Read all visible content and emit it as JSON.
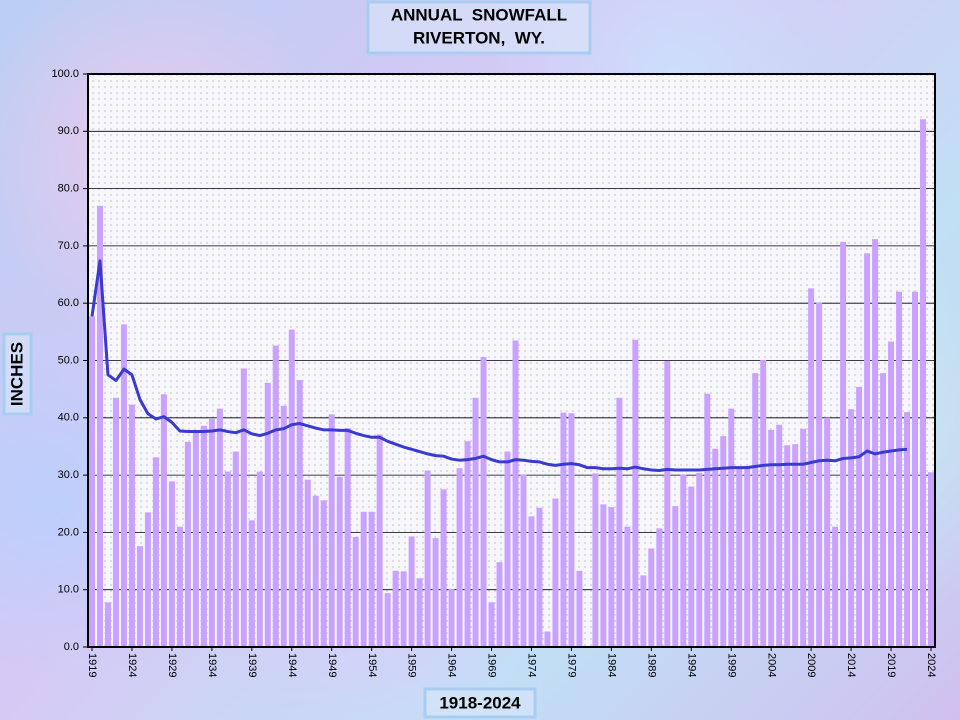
{
  "chart_data": {
    "type": "bar",
    "title": "ANNUAL  SNOWFALL",
    "subtitle": "RIVERTON,  WY.",
    "ylabel": "INCHES",
    "xlabel": "1918-2024",
    "categories": [
      "1919",
      null,
      null,
      null,
      null,
      "1924",
      null,
      null,
      null,
      null,
      "1929",
      null,
      null,
      null,
      null,
      "1934",
      null,
      null,
      null,
      null,
      "1939",
      null,
      null,
      null,
      null,
      "1944",
      null,
      null,
      null,
      null,
      "1949",
      null,
      null,
      null,
      null,
      "1954",
      null,
      null,
      null,
      null,
      "1959",
      null,
      null,
      null,
      null,
      "1964",
      null,
      null,
      null,
      null,
      "1969",
      null,
      null,
      null,
      null,
      "1974",
      null,
      null,
      null,
      null,
      "1979",
      null,
      null,
      null,
      null,
      "1984",
      null,
      null,
      null,
      null,
      "1989",
      null,
      null,
      null,
      null,
      "1994",
      null,
      null,
      null,
      null,
      "1999",
      null,
      null,
      null,
      null,
      "2004",
      null,
      null,
      null,
      null,
      "2009",
      null,
      null,
      null,
      null,
      "2014",
      null,
      null,
      null,
      null,
      "2019",
      null,
      null,
      null,
      null,
      "2024"
    ],
    "series": [
      {
        "type": "bar",
        "color": "#c9a2ff",
        "values": [
          57.7,
          77.0,
          7.8,
          43.5,
          56.3,
          42.3,
          17.6,
          23.5,
          33.1,
          44.1,
          28.9,
          21.0,
          35.8,
          37.5,
          38.6,
          39.8,
          41.6,
          30.6,
          34.1,
          48.6,
          22.1,
          30.6,
          46.1,
          52.6,
          42.1,
          55.4,
          46.6,
          29.2,
          26.4,
          25.6,
          40.6,
          29.7,
          38.2,
          19.2,
          23.6,
          23.6,
          37.1,
          9.4,
          13.3,
          13.2,
          19.3,
          12.0,
          30.8,
          19.0,
          27.5,
          10.1,
          31.2,
          35.9,
          43.5,
          50.6,
          7.8,
          14.8,
          34.1,
          53.5,
          30.1,
          22.8,
          24.3,
          2.7,
          25.9,
          40.9,
          40.8,
          13.3,
          0,
          30.3,
          24.9,
          24.4,
          43.5,
          21.0,
          53.6,
          12.5,
          17.2,
          20.7,
          49.9,
          24.6,
          30.1,
          28.0,
          30.4,
          44.2,
          34.6,
          36.8,
          41.6,
          31.5,
          31.6,
          47.8,
          50.1,
          37.9,
          38.8,
          35.2,
          35.4,
          38.1,
          62.6,
          60.1,
          40.0,
          21.0,
          70.7,
          41.5,
          45.4,
          68.7,
          71.2,
          47.8,
          53.3,
          62.0,
          41.0,
          62.0,
          92.1,
          30.5
        ]
      },
      {
        "type": "line",
        "color": "#3a3ad0",
        "values": [
          57.7,
          67.4,
          47.5,
          46.5,
          48.5,
          47.5,
          43.2,
          40.7,
          39.8,
          40.2,
          39.2,
          37.7,
          37.6,
          37.6,
          37.6,
          37.7,
          37.9,
          37.6,
          37.4,
          37.9,
          37.2,
          36.9,
          37.3,
          37.9,
          38.1,
          38.8,
          39.0,
          38.6,
          38.2,
          37.9,
          37.9,
          37.8,
          37.8,
          37.3,
          36.9,
          36.6,
          36.6,
          35.9,
          35.4,
          34.9,
          34.5,
          34.1,
          33.7,
          33.4,
          33.3,
          32.8,
          32.6,
          32.7,
          32.9,
          33.3,
          32.7,
          32.3,
          32.3,
          32.7,
          32.6,
          32.4,
          32.3,
          31.9,
          31.7,
          31.9,
          32.0,
          31.8,
          31.3,
          31.3,
          31.1,
          31.1,
          31.2,
          31.1,
          31.4,
          31.1,
          30.9,
          30.8,
          31.0,
          30.9,
          30.9,
          30.9,
          30.9,
          31.0,
          31.1,
          31.2,
          31.3,
          31.3,
          31.3,
          31.5,
          31.7,
          31.8,
          31.8,
          31.9,
          31.9,
          31.9,
          32.2,
          32.5,
          32.6,
          32.5,
          32.9,
          33.0,
          33.2,
          34.2,
          33.7,
          34.0,
          34.2,
          34.4,
          34.5,
          null,
          null,
          null
        ]
      }
    ],
    "ylim": [
      0,
      100
    ],
    "yticks": [
      {
        "value": 0,
        "label": "0.0"
      },
      {
        "value": 10,
        "label": "10.0"
      },
      {
        "value": 20,
        "label": "20.0"
      },
      {
        "value": 30,
        "label": "30.0"
      },
      {
        "value": 40,
        "label": "40.0"
      },
      {
        "value": 50,
        "label": "50.0"
      },
      {
        "value": 60,
        "label": "60.0"
      },
      {
        "value": 70,
        "label": "70.0"
      },
      {
        "value": 80,
        "label": "80.0"
      },
      {
        "value": 90,
        "label": "90.0"
      },
      {
        "value": 100,
        "label": "100.0"
      }
    ],
    "grid": true
  }
}
